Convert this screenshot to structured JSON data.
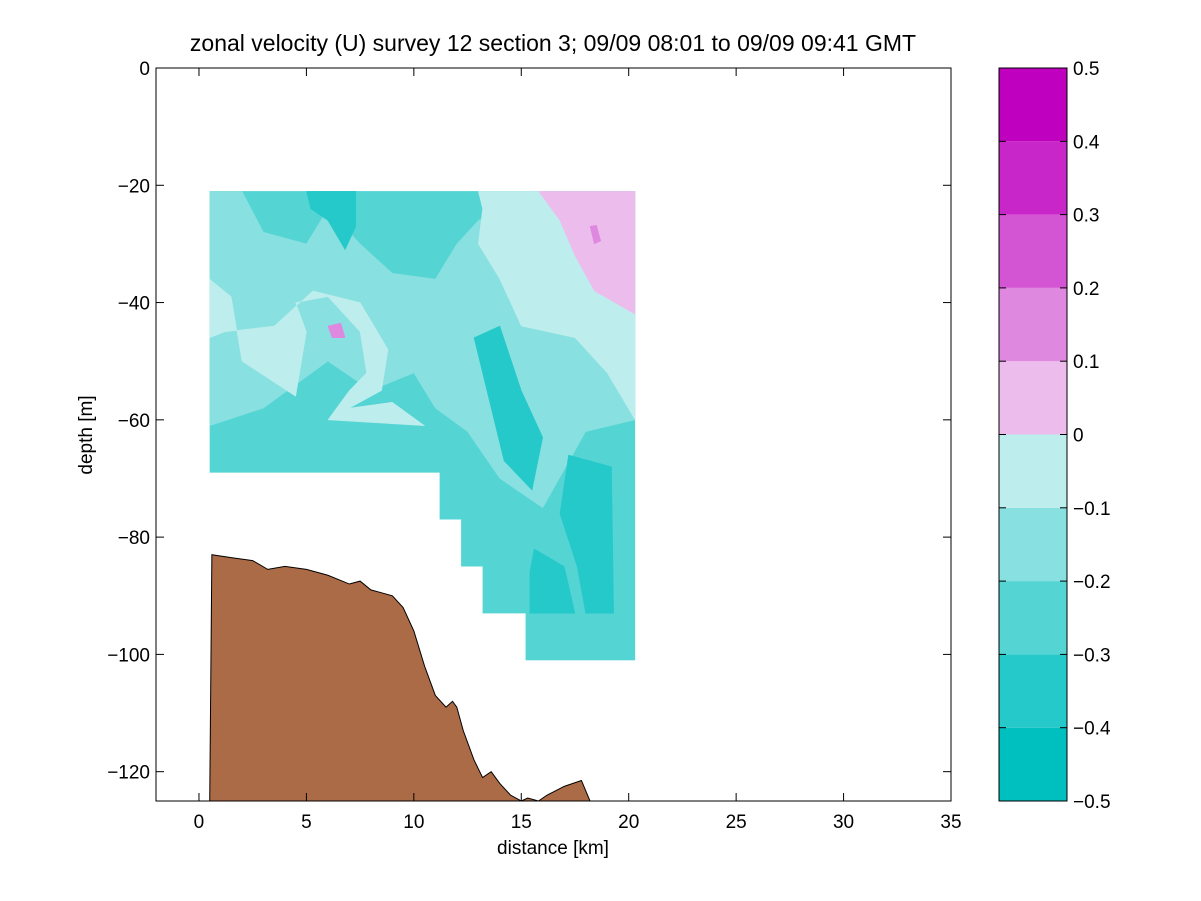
{
  "chart_data": {
    "type": "heatmap",
    "title": "zonal velocity (U) survey 12 section 3; 09/09 08:01 to 09/09 09:41 GMT",
    "xlabel": "distance [km]",
    "ylabel": "depth [m]",
    "xlim": [
      -2,
      35
    ],
    "ylim": [
      -125,
      0
    ],
    "xticks": [
      0,
      5,
      10,
      15,
      20,
      25,
      30,
      35
    ],
    "yticks": [
      0,
      -20,
      -40,
      -60,
      -80,
      -100,
      -120
    ],
    "grid": false,
    "colorbar": {
      "range": [
        -0.5,
        0.5
      ],
      "ticks": [
        0.5,
        0.4,
        0.3,
        0.2,
        0.1,
        0,
        -0.1,
        -0.2,
        -0.3,
        -0.4,
        -0.5
      ],
      "colors": [
        "#00bfbf",
        "#26c9c9",
        "#55d4d4",
        "#88e0e0",
        "#bdeded",
        "#ecbdec",
        "#df88df",
        "#d455d4",
        "#c926c9",
        "#bf00bf"
      ]
    },
    "section": {
      "description_levels": [
        -0.35,
        -0.25,
        -0.15,
        -0.05,
        0.05
      ],
      "coverage": [
        {
          "x": 0.5,
          "top": -21,
          "bottom": -61
        },
        {
          "x": 11.2,
          "top": -21,
          "bottom": -69
        },
        {
          "x": 12.2,
          "top": -21,
          "bottom": -77
        },
        {
          "x": 13.2,
          "top": -21,
          "bottom": -85
        },
        {
          "x": 15.2,
          "top": -21,
          "bottom": -93
        },
        {
          "x": 19.3,
          "top": -21,
          "bottom": -101
        },
        {
          "x": 20.3,
          "top": -21,
          "bottom": -101
        }
      ]
    },
    "bathymetry": {
      "x": [
        0.5,
        0.6,
        1.5,
        2.5,
        3.2,
        4.0,
        5.0,
        6.0,
        7.0,
        7.5,
        8.0,
        8.5,
        9.0,
        9.5,
        10.0,
        10.5,
        11.0,
        11.5,
        11.8,
        12.0,
        12.3,
        12.8,
        13.2,
        13.6,
        14.0,
        14.5,
        15.0,
        15.3,
        15.8,
        16.2,
        17.0,
        17.8,
        18.2
      ],
      "y": [
        -125,
        -83,
        -83.5,
        -84,
        -85.5,
        -85,
        -85.5,
        -86.5,
        -88,
        -87.5,
        -89,
        -89.5,
        -90,
        -92,
        -96,
        -102,
        -107,
        -109,
        -108,
        -109,
        -113,
        -118,
        -121,
        -120,
        -122,
        -124,
        -125,
        -124.5,
        -125,
        -124,
        -122.5,
        -121.5,
        -125
      ]
    }
  }
}
